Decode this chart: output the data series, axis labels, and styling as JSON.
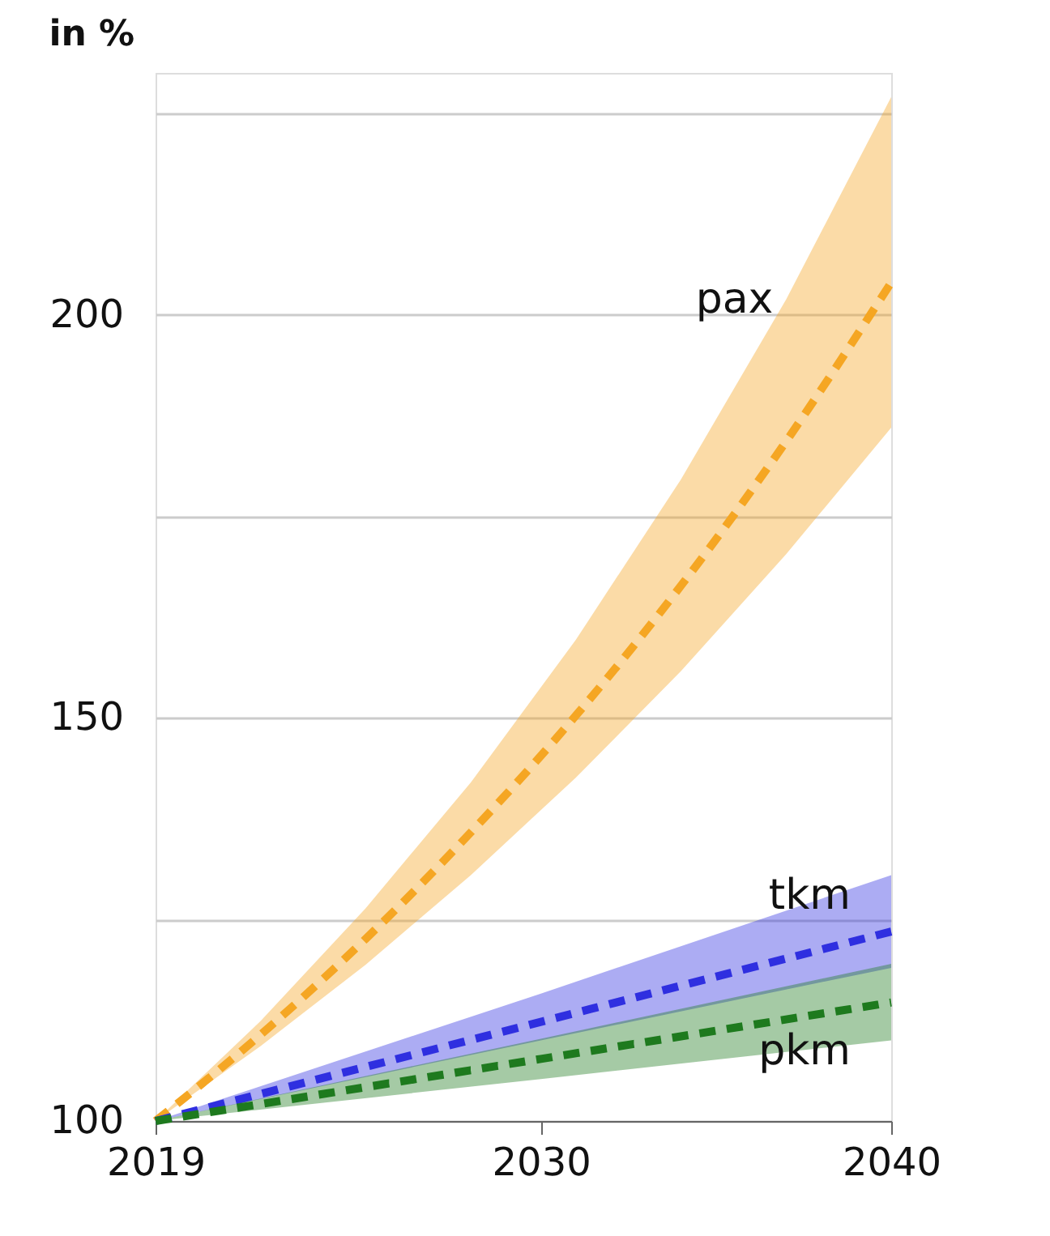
{
  "chart_data": {
    "type": "line",
    "ylabel": "in %",
    "xlim": [
      2019,
      2040
    ],
    "xticks": [
      2019,
      2030,
      2040
    ],
    "ylim": [
      100,
      230
    ],
    "yticks": [
      100,
      {
        "value": 125,
        "label": null
      },
      150,
      {
        "value": 175,
        "label": null
      },
      200,
      {
        "value": 225,
        "label": null
      }
    ],
    "grid": "y",
    "marker": "none",
    "line_style": "dashed",
    "series": [
      {
        "name": "pax",
        "color": "#f5a623",
        "x": [
          2019,
          2022,
          2025,
          2028,
          2031,
          2034,
          2037,
          2040
        ],
        "values": [
          100,
          110.7,
          122.6,
          135.8,
          150.3,
          166.4,
          184.3,
          204
        ],
        "lower": [
          100,
          109.3,
          119.4,
          130.5,
          142.6,
          155.8,
          170.3,
          186
        ],
        "upper": [
          100,
          112.4,
          126.4,
          142,
          159.7,
          179.6,
          201.9,
          227
        ]
      },
      {
        "name": "tkm",
        "color": "#2f2fe0",
        "x": [
          2019,
          2030,
          2040
        ],
        "values": [
          100,
          112.3,
          123.5
        ],
        "lower": [
          100,
          110,
          119
        ],
        "upper": [
          100,
          115.8,
          130.5
        ]
      },
      {
        "name": "pkm",
        "color": "#1e7a1e",
        "x": [
          2019,
          2030,
          2040
        ],
        "values": [
          100,
          107.7,
          114.7
        ],
        "lower": [
          100,
          105.2,
          110
        ],
        "upper": [
          100,
          110.2,
          119.5
        ]
      }
    ]
  }
}
